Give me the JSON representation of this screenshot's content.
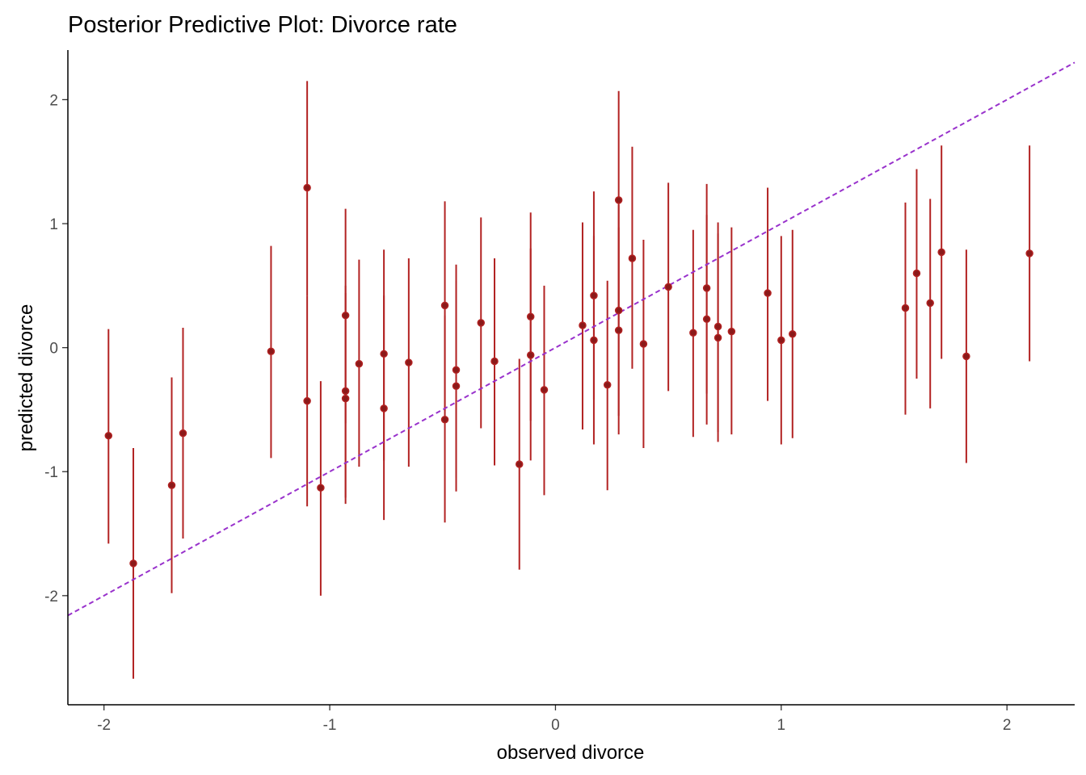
{
  "chart_data": {
    "type": "scatter",
    "title": "Posterior Predictive Plot: Divorce rate",
    "xlabel": "observed divorce",
    "ylabel": "predicted divorce",
    "xlim": [
      -2.16,
      2.3
    ],
    "ylim": [
      -2.88,
      2.4
    ],
    "x_ticks": [
      -2,
      -1,
      0,
      1,
      2
    ],
    "y_ticks": [
      -2,
      -1,
      0,
      1,
      2
    ],
    "x_tick_labels": [
      "-2",
      "-1",
      "0",
      "1",
      "2"
    ],
    "y_tick_labels": [
      "-2",
      "-1",
      "0",
      "1",
      "2"
    ],
    "grid": false,
    "reference_line": {
      "slope": 1,
      "intercept": 0,
      "style": "dashed",
      "color": "#9932cc"
    },
    "point_color": "#8b1a1a",
    "interval_color": "#b22222",
    "points": [
      {
        "x": -1.98,
        "y": -0.71,
        "lo": -1.58,
        "hi": 0.15
      },
      {
        "x": -1.87,
        "y": -1.74,
        "lo": -2.67,
        "hi": -0.81
      },
      {
        "x": -1.7,
        "y": -1.11,
        "lo": -1.98,
        "hi": -0.24
      },
      {
        "x": -1.65,
        "y": -0.69,
        "lo": -1.54,
        "hi": 0.16
      },
      {
        "x": -1.26,
        "y": -0.03,
        "lo": -0.89,
        "hi": 0.82
      },
      {
        "x": -1.1,
        "y": 1.29,
        "lo": 0.42,
        "hi": 2.15
      },
      {
        "x": -1.1,
        "y": -0.43,
        "lo": -1.28,
        "hi": 0.42
      },
      {
        "x": -1.04,
        "y": -1.13,
        "lo": -2.0,
        "hi": -0.27
      },
      {
        "x": -0.93,
        "y": 0.26,
        "lo": -0.61,
        "hi": 1.12
      },
      {
        "x": -0.93,
        "y": -0.35,
        "lo": -1.21,
        "hi": 0.5
      },
      {
        "x": -0.93,
        "y": -0.41,
        "lo": -1.26,
        "hi": 0.44
      },
      {
        "x": -0.87,
        "y": -0.13,
        "lo": -0.96,
        "hi": 0.71
      },
      {
        "x": -0.76,
        "y": -0.05,
        "lo": -0.91,
        "hi": 0.79
      },
      {
        "x": -0.76,
        "y": -0.49,
        "lo": -1.39,
        "hi": 0.42
      },
      {
        "x": -0.65,
        "y": -0.12,
        "lo": -0.96,
        "hi": 0.72
      },
      {
        "x": -0.49,
        "y": 0.34,
        "lo": -0.51,
        "hi": 1.18
      },
      {
        "x": -0.49,
        "y": -0.58,
        "lo": -1.41,
        "hi": 0.26
      },
      {
        "x": -0.44,
        "y": -0.18,
        "lo": -1.05,
        "hi": 0.67
      },
      {
        "x": -0.44,
        "y": -0.31,
        "lo": -1.16,
        "hi": 0.54
      },
      {
        "x": -0.33,
        "y": 0.2,
        "lo": -0.65,
        "hi": 1.05
      },
      {
        "x": -0.27,
        "y": -0.11,
        "lo": -0.95,
        "hi": 0.72
      },
      {
        "x": -0.16,
        "y": -0.94,
        "lo": -1.79,
        "hi": -0.09
      },
      {
        "x": -0.11,
        "y": 0.25,
        "lo": -0.59,
        "hi": 1.09
      },
      {
        "x": -0.11,
        "y": -0.06,
        "lo": -0.91,
        "hi": 0.8
      },
      {
        "x": -0.05,
        "y": -0.34,
        "lo": -1.19,
        "hi": 0.5
      },
      {
        "x": 0.12,
        "y": 0.18,
        "lo": -0.66,
        "hi": 1.01
      },
      {
        "x": 0.17,
        "y": 0.42,
        "lo": -0.42,
        "hi": 1.26
      },
      {
        "x": 0.17,
        "y": 0.06,
        "lo": -0.78,
        "hi": 0.9
      },
      {
        "x": 0.23,
        "y": -0.3,
        "lo": -1.15,
        "hi": 0.54
      },
      {
        "x": 0.28,
        "y": 1.19,
        "lo": 0.32,
        "hi": 2.07
      },
      {
        "x": 0.28,
        "y": 0.3,
        "lo": -0.55,
        "hi": 1.15
      },
      {
        "x": 0.28,
        "y": 0.14,
        "lo": -0.7,
        "hi": 0.97
      },
      {
        "x": 0.34,
        "y": 0.72,
        "lo": -0.17,
        "hi": 1.62
      },
      {
        "x": 0.39,
        "y": 0.03,
        "lo": -0.81,
        "hi": 0.87
      },
      {
        "x": 0.5,
        "y": 0.49,
        "lo": -0.35,
        "hi": 1.33
      },
      {
        "x": 0.61,
        "y": 0.12,
        "lo": -0.72,
        "hi": 0.95
      },
      {
        "x": 0.67,
        "y": 0.48,
        "lo": -0.37,
        "hi": 1.32
      },
      {
        "x": 0.67,
        "y": 0.23,
        "lo": -0.62,
        "hi": 1.07
      },
      {
        "x": 0.72,
        "y": 0.17,
        "lo": -0.68,
        "hi": 1.01
      },
      {
        "x": 0.72,
        "y": 0.08,
        "lo": -0.76,
        "hi": 0.92
      },
      {
        "x": 0.78,
        "y": 0.13,
        "lo": -0.7,
        "hi": 0.97
      },
      {
        "x": 0.94,
        "y": 0.44,
        "lo": -0.43,
        "hi": 1.29
      },
      {
        "x": 1.0,
        "y": 0.06,
        "lo": -0.78,
        "hi": 0.9
      },
      {
        "x": 1.05,
        "y": 0.11,
        "lo": -0.73,
        "hi": 0.95
      },
      {
        "x": 1.55,
        "y": 0.32,
        "lo": -0.54,
        "hi": 1.17
      },
      {
        "x": 1.6,
        "y": 0.6,
        "lo": -0.25,
        "hi": 1.44
      },
      {
        "x": 1.66,
        "y": 0.36,
        "lo": -0.49,
        "hi": 1.2
      },
      {
        "x": 1.71,
        "y": 0.77,
        "lo": -0.09,
        "hi": 1.63
      },
      {
        "x": 1.82,
        "y": -0.07,
        "lo": -0.93,
        "hi": 0.79
      },
      {
        "x": 2.1,
        "y": 0.76,
        "lo": -0.11,
        "hi": 1.63
      }
    ]
  }
}
